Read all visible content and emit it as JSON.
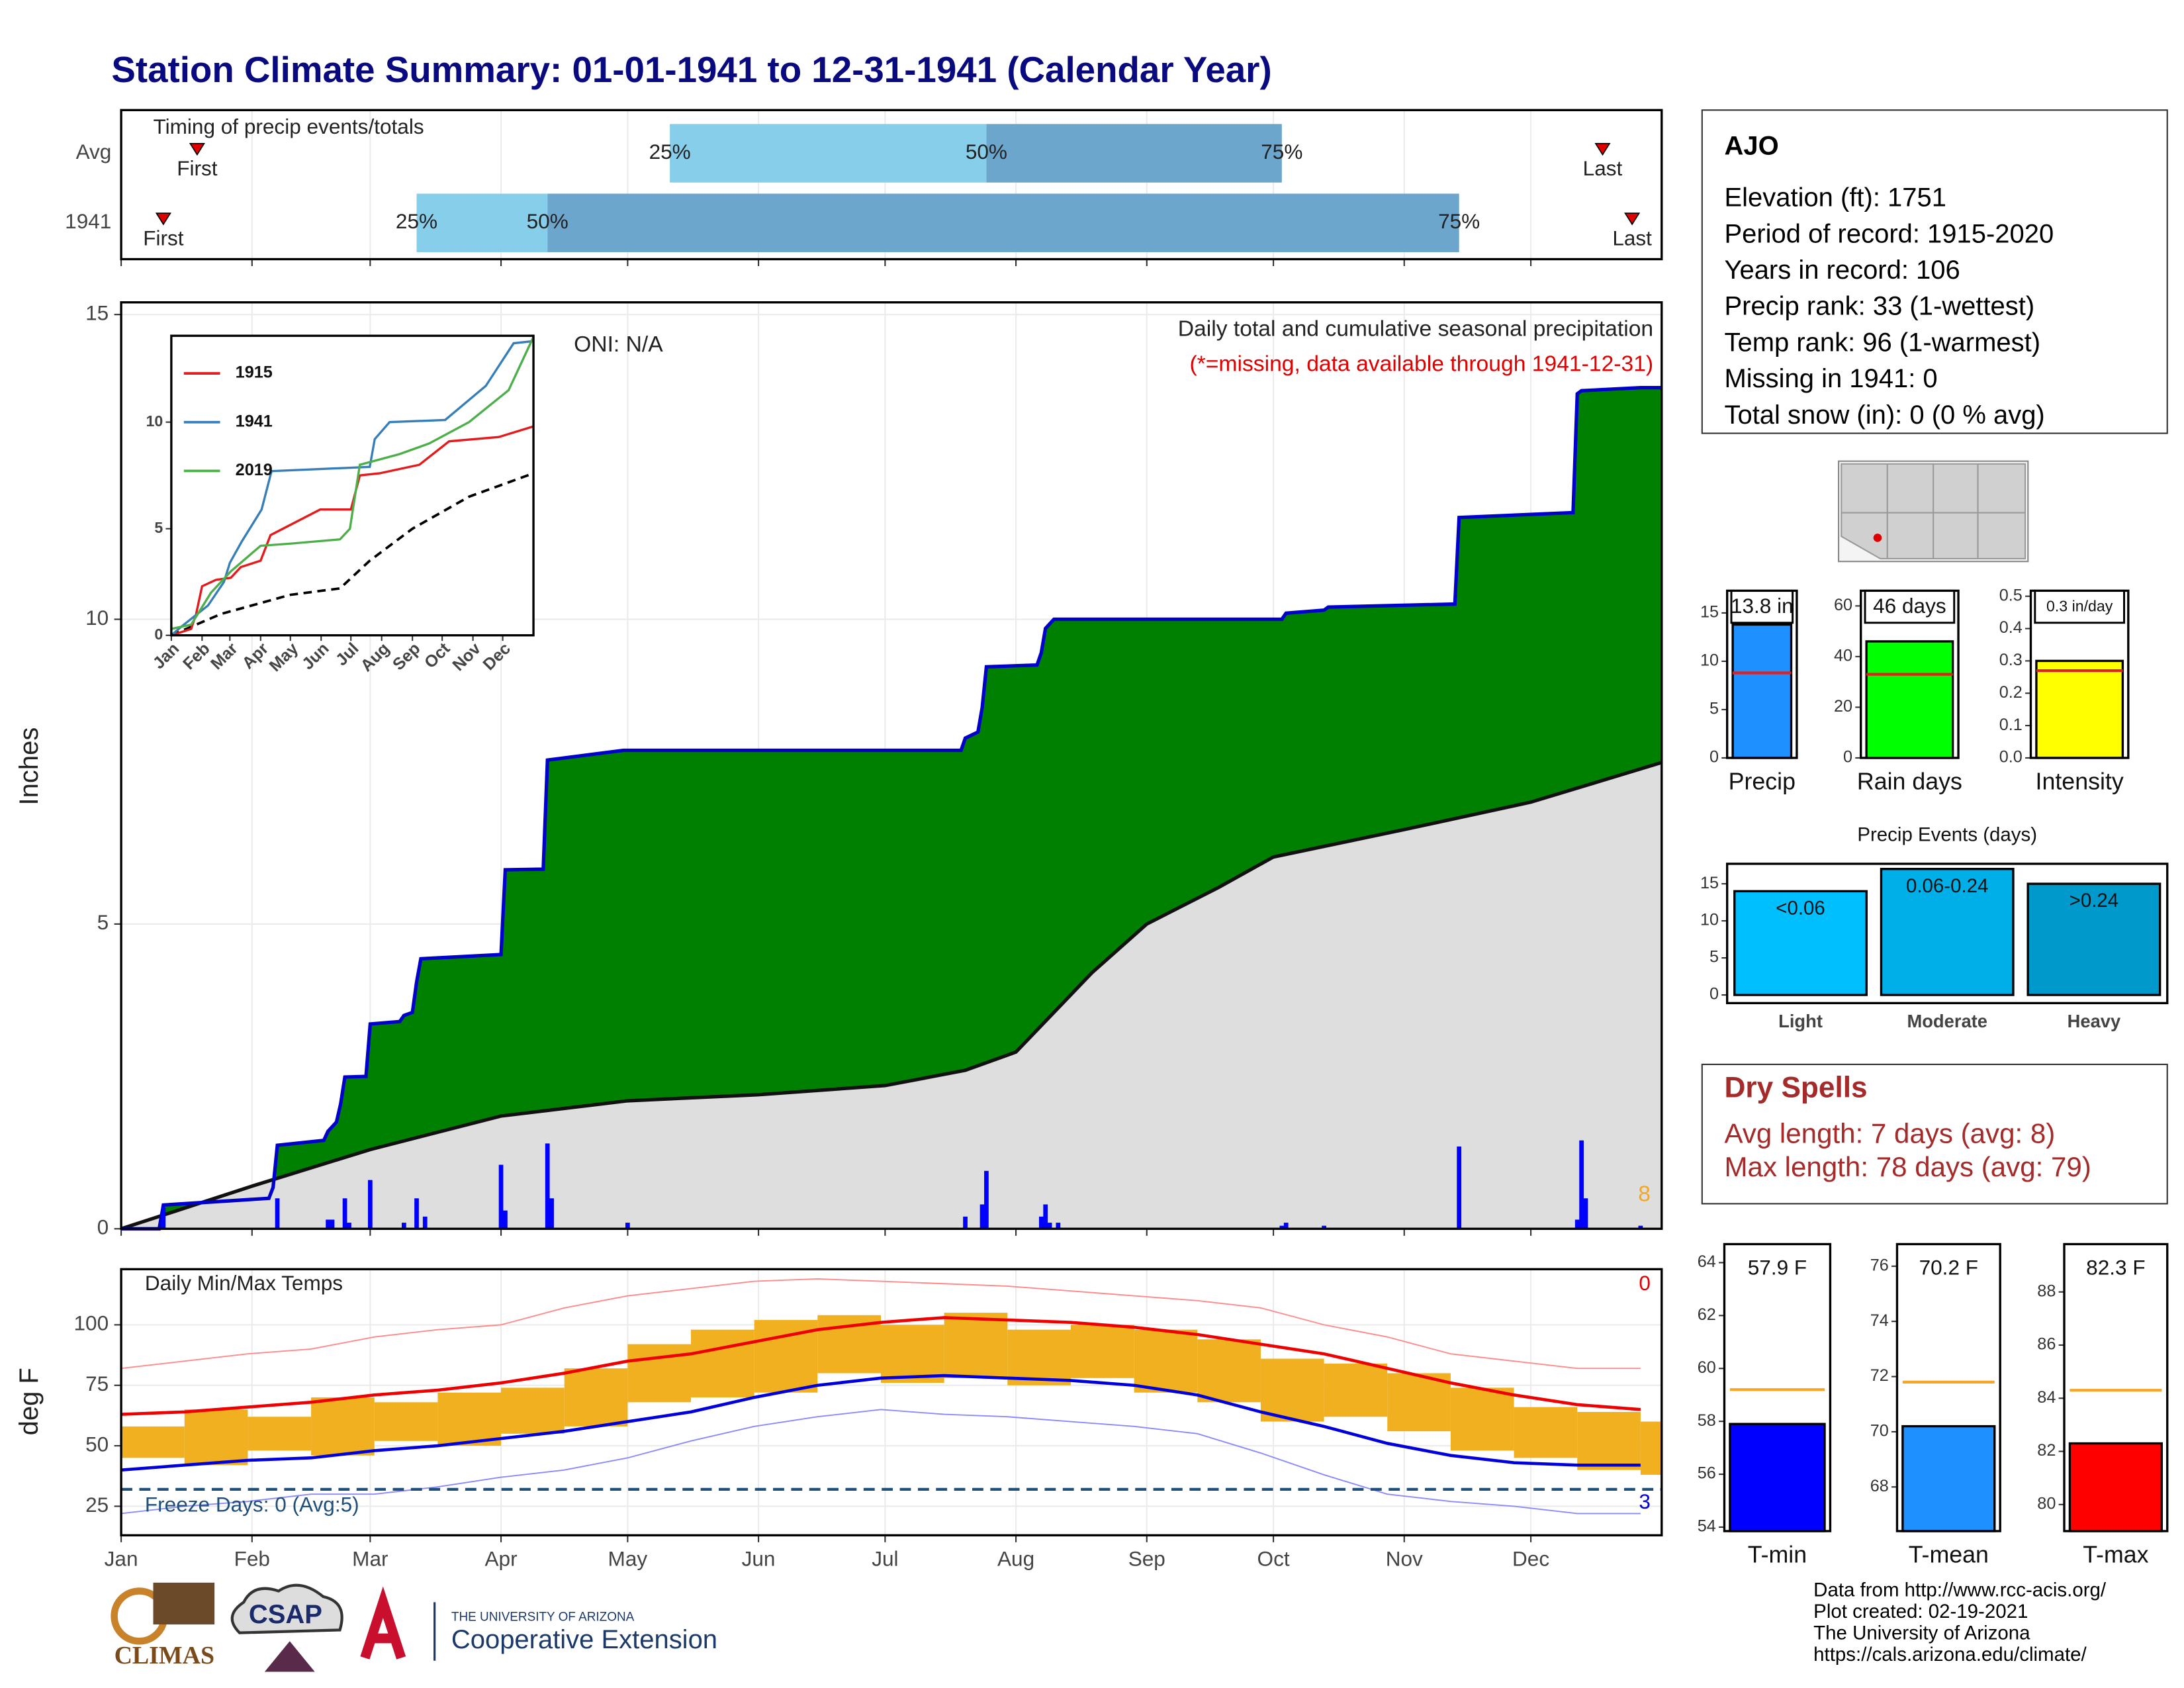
{
  "title": "Station Climate Summary: 01-01-1941 to 12-31-1941 (Calendar Year)",
  "chart_data": [
    {
      "type": "timing",
      "title": "Timing of precip events/totals",
      "categories": [
        "Avg",
        "1941"
      ],
      "markers": [
        {
          "label": "First",
          "values": [
            18,
            10
          ]
        },
        {
          "label": "Last",
          "values": [
            351,
            358
          ]
        }
      ],
      "quantiles": [
        {
          "label": "25%",
          "values": [
            130,
            70
          ]
        },
        {
          "label": "50%",
          "values": [
            205,
            101
          ]
        },
        {
          "label": "75%",
          "values": [
            275,
            317
          ]
        }
      ],
      "colors": [
        "#87ceeb",
        "#6ca6cd"
      ],
      "marker_color": "#e00000",
      "xlim": [
        0,
        365
      ]
    },
    {
      "type": "precip",
      "title": "Daily total and cumulative seasonal precipitation",
      "subtitle": "(*=missing, data available through 1941-12-31)",
      "annotation": "ONI: N/A",
      "corner_note": "8",
      "y_label": "Inches",
      "xlim": [
        0,
        365
      ],
      "ylim": [
        0,
        15.2
      ],
      "yticks": [
        0,
        5,
        10,
        15
      ],
      "cumulative": {
        "color": "#008000",
        "line_color": "#0000cc",
        "x": [
          0,
          9,
          10,
          35,
          36,
          37,
          48,
          49,
          51,
          52,
          53,
          58,
          59,
          66,
          67,
          69,
          70,
          71,
          90,
          91,
          100,
          101,
          119,
          199,
          200,
          203,
          204,
          205,
          217,
          218,
          219,
          221,
          275,
          276,
          285,
          286,
          316,
          317,
          344,
          345,
          346,
          360,
          365
        ],
        "values": [
          0,
          0,
          0.39,
          0.5,
          0.68,
          1.37,
          1.45,
          1.6,
          1.75,
          2.05,
          2.49,
          2.5,
          3.36,
          3.4,
          3.5,
          3.55,
          4.05,
          4.43,
          4.5,
          5.89,
          5.9,
          7.69,
          7.85,
          7.85,
          8.05,
          8.15,
          8.55,
          9.22,
          9.25,
          9.45,
          9.85,
          10.0,
          10.0,
          10.1,
          10.15,
          10.2,
          10.25,
          11.67,
          11.75,
          13.7,
          13.75,
          13.8,
          13.8
        ]
      },
      "normal": {
        "color": "#dedede",
        "line_color": "#111111",
        "x": [
          0,
          31,
          59,
          90,
          120,
          151,
          181,
          200,
          212,
          230,
          243,
          260,
          273,
          304,
          334,
          365
        ],
        "values": [
          0,
          0.7,
          1.3,
          1.85,
          2.1,
          2.2,
          2.35,
          2.6,
          2.9,
          4.2,
          5.0,
          5.6,
          6.1,
          6.55,
          7.0,
          7.65
        ]
      },
      "daily": {
        "color": "#0000ff",
        "x": [
          10,
          37,
          49,
          50,
          53,
          54,
          59,
          67,
          70,
          72,
          90,
          91,
          101,
          102,
          120,
          200,
          204,
          205,
          218,
          219,
          220,
          222,
          275,
          276,
          285,
          317,
          345,
          346,
          347,
          360
        ],
        "values": [
          0.35,
          0.5,
          0.15,
          0.15,
          0.5,
          0.1,
          0.8,
          0.1,
          0.5,
          0.2,
          1.05,
          0.3,
          1.4,
          0.5,
          0.1,
          0.2,
          0.4,
          0.95,
          0.2,
          0.4,
          0.1,
          0.1,
          0.05,
          0.1,
          0.05,
          1.35,
          0.15,
          1.45,
          0.5,
          0.05
        ]
      }
    },
    {
      "type": "line",
      "xlim": [
        0,
        365
      ],
      "ylim": [
        0,
        14.05
      ],
      "yticks": [
        0,
        5,
        10
      ],
      "xticks": [
        {
          "value": 0,
          "label": "Jan"
        },
        {
          "value": 31,
          "label": "Feb"
        },
        {
          "value": 59,
          "label": "Mar"
        },
        {
          "value": 90,
          "label": "Apr"
        },
        {
          "value": 120,
          "label": "May"
        },
        {
          "value": 151,
          "label": "Jun"
        },
        {
          "value": 181,
          "label": "Jul"
        },
        {
          "value": 212,
          "label": "Aug"
        },
        {
          "value": 243,
          "label": "Sep"
        },
        {
          "value": 273,
          "label": "Oct"
        },
        {
          "value": 304,
          "label": "Nov"
        },
        {
          "value": 334,
          "label": "Dec"
        }
      ],
      "series": [
        {
          "name": "1915",
          "color": "#e41a1c",
          "x": [
            0,
            20,
            25,
            31,
            45,
            60,
            70,
            90,
            100,
            150,
            181,
            190,
            210,
            250,
            280,
            330,
            365
          ],
          "values": [
            0,
            0.3,
            1,
            2.3,
            2.6,
            2.7,
            3.2,
            3.5,
            4.7,
            5.9,
            5.9,
            7.5,
            7.6,
            8,
            9.1,
            9.3,
            9.8
          ]
        },
        {
          "name": "1941",
          "color": "#377eb8",
          "x": [
            0,
            10,
            37,
            53,
            59,
            71,
            91,
            101,
            200,
            205,
            220,
            276,
            317,
            345,
            365
          ],
          "values": [
            0,
            0.4,
            1.4,
            2.5,
            3.4,
            4.4,
            5.9,
            7.7,
            7.9,
            9.2,
            10,
            10.1,
            11.7,
            13.7,
            13.8
          ]
        },
        {
          "name": "2019",
          "color": "#4daf4a",
          "x": [
            0,
            20,
            40,
            60,
            90,
            120,
            170,
            180,
            190,
            230,
            260,
            300,
            340,
            365
          ],
          "values": [
            0.3,
            0.5,
            2,
            3,
            4.2,
            4.3,
            4.5,
            5,
            8,
            8.5,
            9,
            10,
            11.5,
            14
          ]
        }
      ],
      "normal": {
        "color": "#000000",
        "x": [
          0,
          50,
          120,
          170,
          200,
          243,
          300,
          365
        ],
        "values": [
          0,
          1,
          1.9,
          2.2,
          3.5,
          5,
          6.5,
          7.6
        ]
      }
    },
    {
      "type": "temperature",
      "title": "Daily Min/Max Temps",
      "y_label": "deg F",
      "corner_note": "0",
      "corner_note_2": "3",
      "xlim": [
        0,
        365
      ],
      "ylim": [
        13,
        123
      ],
      "yticks": [
        25,
        50,
        75,
        100
      ],
      "xticks": [
        {
          "value": 0,
          "label": "Jan"
        },
        {
          "value": 31,
          "label": "Feb"
        },
        {
          "value": 59,
          "label": "Mar"
        },
        {
          "value": 90,
          "label": "Apr"
        },
        {
          "value": 120,
          "label": "May"
        },
        {
          "value": 151,
          "label": "Jun"
        },
        {
          "value": 181,
          "label": "Jul"
        },
        {
          "value": 212,
          "label": "Aug"
        },
        {
          "value": 243,
          "label": "Sep"
        },
        {
          "value": 273,
          "label": "Oct"
        },
        {
          "value": 304,
          "label": "Nov"
        },
        {
          "value": 334,
          "label": "Dec"
        }
      ],
      "x": [
        0,
        15,
        30,
        45,
        60,
        75,
        90,
        105,
        120,
        135,
        150,
        165,
        180,
        195,
        210,
        225,
        240,
        255,
        270,
        285,
        300,
        315,
        330,
        345,
        360
      ],
      "observed": {
        "color": "#f0b020",
        "low": [
          45,
          42,
          48,
          46,
          52,
          50,
          55,
          58,
          68,
          70,
          72,
          80,
          76,
          78,
          75,
          78,
          72,
          68,
          60,
          62,
          56,
          48,
          45,
          40,
          38
        ],
        "high": [
          58,
          65,
          62,
          70,
          68,
          72,
          74,
          82,
          92,
          98,
          102,
          104,
          100,
          105,
          98,
          100,
          98,
          94,
          86,
          84,
          80,
          74,
          66,
          64,
          60
        ]
      },
      "normal_max": {
        "color": "#ee0000",
        "values": [
          63,
          64,
          66,
          68,
          71,
          73,
          76,
          80,
          85,
          88,
          93,
          98,
          101,
          103,
          102,
          101,
          99,
          96,
          92,
          88,
          82,
          76,
          71,
          67,
          65
        ]
      },
      "normal_min": {
        "color": "#0000dd",
        "values": [
          40,
          42,
          44,
          45,
          48,
          50,
          53,
          56,
          60,
          64,
          70,
          75,
          78,
          79,
          78,
          77,
          75,
          71,
          64,
          58,
          51,
          46,
          43,
          42,
          42
        ]
      },
      "record_max": {
        "color": "#ff8a8a",
        "values": [
          82,
          85,
          88,
          90,
          95,
          98,
          100,
          107,
          112,
          115,
          118,
          119,
          118,
          117,
          116,
          114,
          112,
          110,
          107,
          100,
          95,
          88,
          85,
          82,
          82
        ]
      },
      "record_min": {
        "color": "#8a8aff",
        "values": [
          22,
          25,
          27,
          30,
          30,
          33,
          37,
          40,
          45,
          52,
          58,
          62,
          65,
          63,
          62,
          60,
          58,
          55,
          47,
          38,
          30,
          27,
          25,
          22,
          22
        ]
      },
      "freeze": {
        "value": 32,
        "label": "Freeze Days: 0 (Avg:5)",
        "color": "#1f4e79"
      }
    },
    {
      "type": "bar",
      "categories": [
        "Precip"
      ],
      "values": [
        13.8
      ],
      "value_labels": [
        "13.8 in"
      ],
      "avg": 8.8,
      "color": "#1e90ff",
      "avg_color": "#e02020",
      "ylim": [
        0,
        17.3
      ],
      "yticks": [
        0,
        5,
        10,
        15
      ]
    },
    {
      "type": "bar",
      "categories": [
        "Rain days"
      ],
      "values": [
        46
      ],
      "value_labels": [
        "46 days"
      ],
      "avg": 33,
      "color": "#00ff00",
      "avg_color": "#e02020",
      "ylim": [
        0,
        66
      ],
      "yticks": [
        0,
        20,
        40,
        60
      ]
    },
    {
      "type": "bar",
      "categories": [
        "Intensity"
      ],
      "values": [
        0.3
      ],
      "value_labels": [
        "0.3 in/day"
      ],
      "avg": 0.27,
      "color": "#ffff00",
      "avg_color": "#e02020",
      "ylim": [
        0,
        0.517
      ],
      "yticks": [
        {
          "value": 0,
          "label": "0.0"
        },
        0.1,
        0.2,
        0.3,
        0.4,
        0.5
      ]
    },
    {
      "type": "events",
      "title": "Precip Events (days)",
      "categories": [
        "Light",
        "Moderate",
        "Heavy"
      ],
      "values": [
        14,
        17,
        15
      ],
      "bin_labels": [
        "<0.06",
        "0.06-0.24",
        ">0.24"
      ],
      "colors": [
        "#00bfff",
        "#00aee8",
        "#0099cc"
      ],
      "ylim": [
        -1.1,
        17.7
      ],
      "yticks": [
        0,
        5,
        10,
        15
      ]
    },
    {
      "type": "bar",
      "categories": [
        "T-min"
      ],
      "values": [
        57.9
      ],
      "value_labels": [
        "57.9 F"
      ],
      "avg": 59.2,
      "color": "#0000ff",
      "avg_color": "#f5a623",
      "ylim": [
        53.85,
        64.7
      ],
      "yticks": [
        54,
        56,
        58,
        60,
        62,
        64
      ]
    },
    {
      "type": "bar",
      "categories": [
        "T-mean"
      ],
      "values": [
        70.2
      ],
      "value_labels": [
        "70.2 F"
      ],
      "avg": 71.8,
      "color": "#1e90ff",
      "avg_color": "#f5a623",
      "ylim": [
        66.4,
        76.8
      ],
      "yticks": [
        68,
        70,
        72,
        74,
        76
      ]
    },
    {
      "type": "bar",
      "categories": [
        "T-max"
      ],
      "values": [
        82.3
      ],
      "value_labels": [
        "82.3 F"
      ],
      "avg": 84.3,
      "color": "#ff0000",
      "avg_color": "#f5a623",
      "ylim": [
        79,
        89.8
      ],
      "yticks": [
        80,
        82,
        84,
        86,
        88
      ]
    }
  ],
  "station": {
    "name": "AJO",
    "lines": [
      "Elevation (ft): 1751",
      "Period of record: 1915-2020",
      "Years in record: 106",
      "Precip rank: 33 (1-wettest)",
      "Temp rank: 96 (1-warmest)",
      "Missing in 1941: 0",
      "Total snow (in): 0 (0 % avg)"
    ]
  },
  "dry_spells": {
    "title": "Dry Spells",
    "lines": [
      "Avg length: 7 days (avg: 8)",
      "Max length: 78 days (avg: 79)"
    ]
  },
  "footer": {
    "lines": [
      "Data from http://www.rcc-acis.org/",
      "Plot created: 02-19-2021",
      "The University of Arizona",
      "https://cals.arizona.edu/climate/"
    ],
    "logos": [
      "CLIMAS",
      "CSAP",
      "THE UNIVERSITY OF ARIZONA",
      "Cooperative Extension"
    ]
  }
}
